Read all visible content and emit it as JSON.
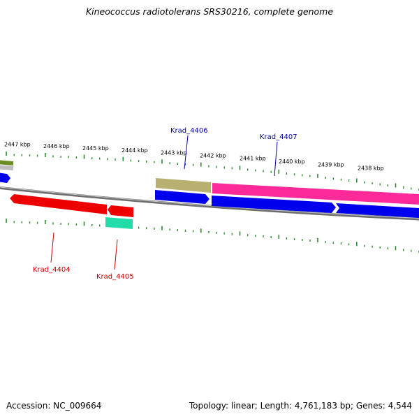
{
  "title": "Kineococcus radiotolerans SRS30216, complete genome",
  "footer": {
    "accession": "Accession: NC_009664",
    "summary": "Topology: linear; Length: 4,761,183 bp; Genes: 4,544"
  },
  "ruler": {
    "ticks": [
      "2447 kbp",
      "2446 kbp",
      "2445 kbp",
      "2444 kbp",
      "2443 kbp",
      "2442 kbp",
      "2441 kbp",
      "2440 kbp",
      "2439 kbp",
      "2438 kbp"
    ]
  },
  "labels": [
    {
      "text": "Krad_4406",
      "color": "#0000aa"
    },
    {
      "text": "Krad_4407",
      "color": "#0000aa"
    },
    {
      "text": "Krad_4404",
      "color": "#cc0000"
    },
    {
      "text": "Krad_4405",
      "color": "#cc0000"
    }
  ],
  "colors": {
    "backbone": "#808080",
    "tick": "#2e8b2e",
    "cds_forward": "#0000ee",
    "cds_reverse": "#ee0000",
    "feature_olive": "#b8b070",
    "feature_magenta": "#ff2a9a",
    "feature_teal": "#22ddaa",
    "feature_green_left": "#6b8e23"
  }
}
